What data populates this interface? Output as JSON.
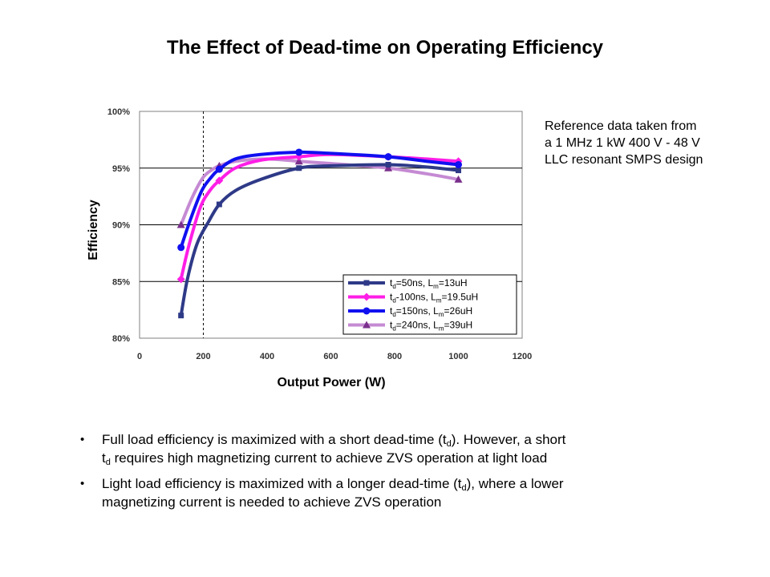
{
  "slide": {
    "title": "The Effect of Dead-time on Operating Efficiency"
  },
  "note": {
    "lines": [
      "Reference data taken from",
      "a 1 MHz 1 kW 400 V - 48 V",
      "LLC resonant SMPS design"
    ]
  },
  "bullets": [
    {
      "parts": [
        "Full load efficiency is maximized  with a short dead-time (t",
        "d",
        "). However, a short"
      ],
      "parts2": [
        "t",
        "d",
        " requires high magnetizing  current to achieve ZVS operation at light load"
      ]
    },
    {
      "parts": [
        "Light load efficiency is maximized  with a longer dead-time (t",
        "d",
        "), where a lower"
      ],
      "parts2": [
        "magnetizing  current is needed to achieve ZVS operation"
      ]
    }
  ],
  "bullet_glyph": "•",
  "chart_data": {
    "type": "line",
    "title": "",
    "xlabel": "Output Power (W)",
    "ylabel": "Efficiency",
    "xlim": [
      0,
      1200
    ],
    "ylim": [
      80,
      100
    ],
    "xticks": [
      0,
      200,
      400,
      600,
      800,
      1000,
      1200
    ],
    "yticks": [
      80,
      85,
      90,
      95,
      100
    ],
    "ytick_labels": [
      "80%",
      "85%",
      "90%",
      "95%",
      "100%"
    ],
    "vline_x": 200,
    "grid": "horizontal",
    "legend_position": "bottom-right",
    "series": [
      {
        "name_t": "t",
        "name_sub": "d",
        "name_rest": "=50ns,   L",
        "name_sub2": "m",
        "name_end": "=13uH",
        "color": "#2E3A87",
        "marker": "square",
        "x": [
          130,
          250,
          500,
          780,
          1000
        ],
        "y": [
          82.0,
          91.8,
          95.0,
          95.3,
          94.8
        ],
        "curve": [
          [
            130,
            82.0
          ],
          [
            150,
            85.2
          ],
          [
            180,
            88.3
          ],
          [
            215,
            90.2
          ],
          [
            250,
            91.8
          ],
          [
            300,
            93.0
          ],
          [
            380,
            94.0
          ],
          [
            500,
            95.0
          ],
          [
            600,
            95.2
          ],
          [
            780,
            95.3
          ],
          [
            900,
            95.1
          ],
          [
            1000,
            94.8
          ]
        ]
      },
      {
        "name_t": "t",
        "name_sub": "d",
        "name_rest": "-100ns,   L",
        "name_sub2": "m",
        "name_end": "=19.5uH",
        "color": "#FF1EE6",
        "marker": "diamond",
        "x": [
          130,
          250,
          500,
          780,
          1000
        ],
        "y": [
          85.2,
          93.9,
          96.0,
          96.0,
          95.6
        ],
        "curve": [
          [
            130,
            85.2
          ],
          [
            155,
            88.2
          ],
          [
            190,
            91.5
          ],
          [
            220,
            93.0
          ],
          [
            250,
            93.9
          ],
          [
            300,
            95.0
          ],
          [
            380,
            95.7
          ],
          [
            500,
            96.0
          ],
          [
            600,
            96.2
          ],
          [
            780,
            96.0
          ],
          [
            900,
            95.8
          ],
          [
            1000,
            95.6
          ]
        ]
      },
      {
        "name_t": "t",
        "name_sub": "d",
        "name_rest": "=150ns,   L",
        "name_sub2": "m",
        "name_end": "=26uH",
        "color": "#1010F0",
        "marker": "circle",
        "x": [
          130,
          250,
          500,
          780,
          1000
        ],
        "y": [
          88.0,
          94.9,
          96.4,
          96.0,
          95.3
        ],
        "curve": [
          [
            130,
            88.0
          ],
          [
            160,
            90.5
          ],
          [
            195,
            93.0
          ],
          [
            225,
            94.2
          ],
          [
            250,
            94.9
          ],
          [
            300,
            95.8
          ],
          [
            380,
            96.2
          ],
          [
            500,
            96.4
          ],
          [
            600,
            96.3
          ],
          [
            780,
            96.0
          ],
          [
            900,
            95.6
          ],
          [
            1000,
            95.3
          ]
        ]
      },
      {
        "name_t": "t",
        "name_sub": "d",
        "name_rest": "=240ns,   L",
        "name_sub2": "m",
        "name_end": "=39uH",
        "color": "#C58AD3",
        "marker": "triangle",
        "x": [
          130,
          250,
          500,
          780,
          1000
        ],
        "y": [
          90.0,
          95.2,
          95.6,
          95.0,
          94.0
        ],
        "curve": [
          [
            130,
            90.0
          ],
          [
            165,
            92.4
          ],
          [
            200,
            94.2
          ],
          [
            230,
            94.9
          ],
          [
            250,
            95.2
          ],
          [
            300,
            95.6
          ],
          [
            400,
            95.8
          ],
          [
            500,
            95.6
          ],
          [
            650,
            95.3
          ],
          [
            780,
            95.0
          ],
          [
            900,
            94.5
          ],
          [
            1000,
            94.0
          ]
        ]
      }
    ]
  }
}
